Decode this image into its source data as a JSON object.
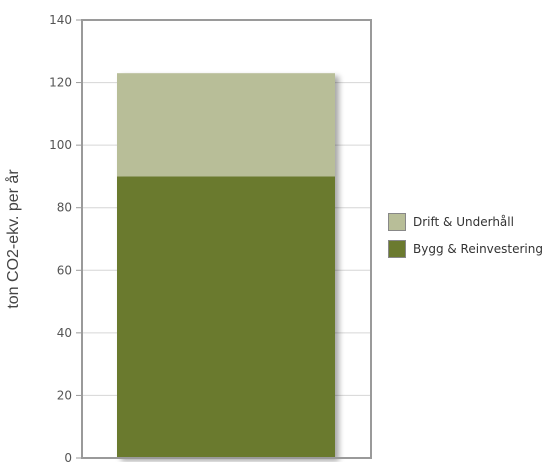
{
  "chart_data": {
    "type": "bar",
    "stacked": true,
    "categories": [
      ""
    ],
    "series": [
      {
        "name": "Bygg & Reinvestering",
        "values": [
          90
        ],
        "color": "#6b7a2f"
      },
      {
        "name": "Drift & Underhåll",
        "values": [
          33
        ],
        "color": "#b8be98"
      }
    ],
    "title": "",
    "xlabel": "",
    "ylabel": "ton CO2-ekv. per år",
    "ylim": [
      0,
      140
    ],
    "yticks": [
      0,
      20,
      40,
      60,
      80,
      100,
      120,
      140
    ],
    "grid": true,
    "legend_position": "right"
  },
  "legend": {
    "items": [
      {
        "label": "Drift & Underhåll",
        "color": "#b8be98"
      },
      {
        "label": "Bygg & Reinvestering",
        "color": "#6b7a2f"
      }
    ]
  }
}
